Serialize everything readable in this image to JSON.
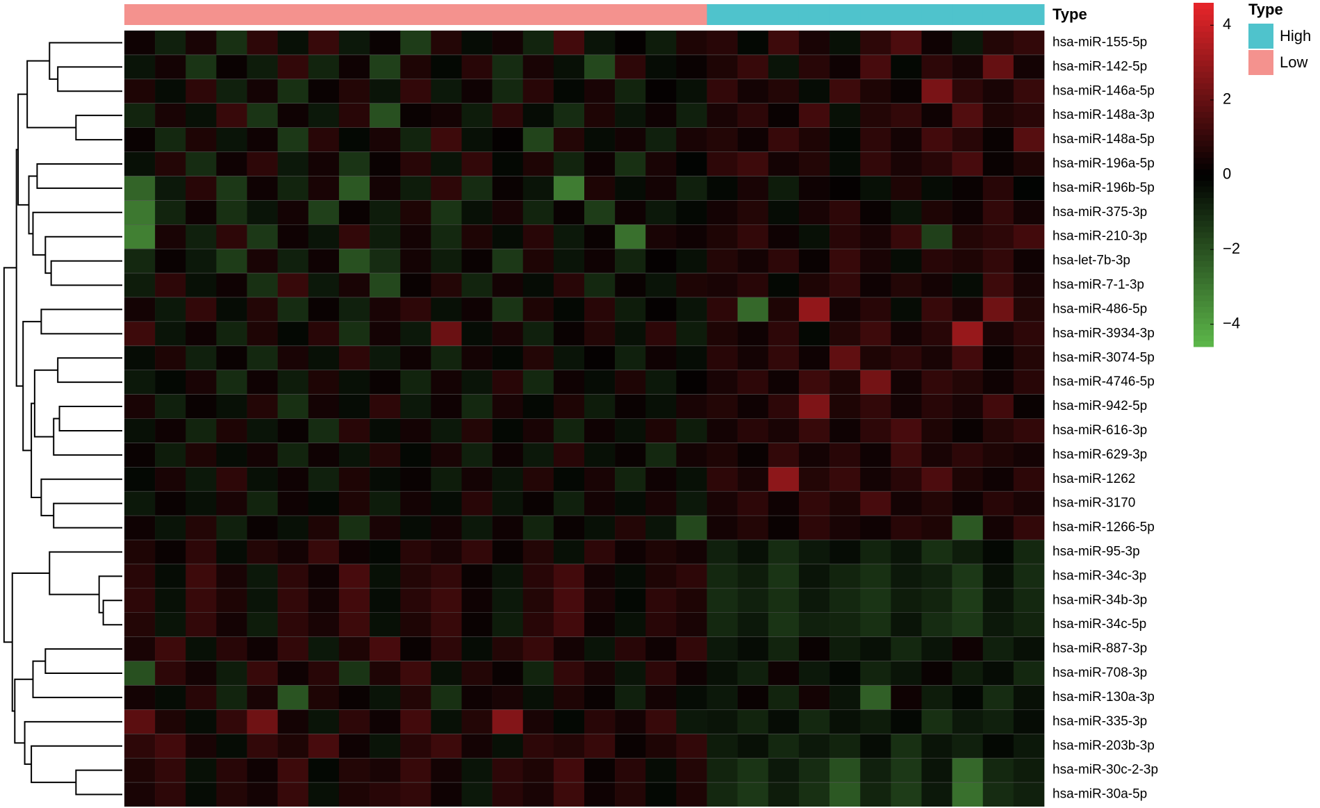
{
  "chart_data": {
    "type": "heatmap",
    "rows": [
      "hsa-miR-155-5p",
      "hsa-miR-142-5p",
      "hsa-miR-146a-5p",
      "hsa-miR-148a-3p",
      "hsa-miR-148a-5p",
      "hsa-miR-196a-5p",
      "hsa-miR-196b-5p",
      "hsa-miR-375-3p",
      "hsa-miR-210-3p",
      "hsa-let-7b-3p",
      "hsa-miR-7-1-3p",
      "hsa-miR-486-5p",
      "hsa-miR-3934-3p",
      "hsa-miR-3074-5p",
      "hsa-miR-4746-5p",
      "hsa-miR-942-5p",
      "hsa-miR-616-3p",
      "hsa-miR-629-3p",
      "hsa-miR-1262",
      "hsa-miR-3170",
      "hsa-miR-1266-5p",
      "hsa-miR-95-3p",
      "hsa-miR-34c-3p",
      "hsa-miR-34b-3p",
      "hsa-miR-34c-5p",
      "hsa-miR-887-3p",
      "hsa-miR-708-3p",
      "hsa-miR-130a-3p",
      "hsa-miR-335-3p",
      "hsa-miR-203b-3p",
      "hsa-miR-30c-2-3p",
      "hsa-miR-30a-5p"
    ],
    "annotation": {
      "title": "Type",
      "levels": [
        {
          "name": "High",
          "color": "#4FC3CC"
        },
        {
          "name": "Low",
          "color": "#F4928E"
        }
      ],
      "column_type": [
        "Low",
        "Low",
        "Low",
        "Low",
        "Low",
        "Low",
        "Low",
        "Low",
        "Low",
        "Low",
        "Low",
        "Low",
        "Low",
        "Low",
        "Low",
        "Low",
        "Low",
        "Low",
        "Low",
        "High",
        "High",
        "High",
        "High",
        "High",
        "High",
        "High",
        "High",
        "High",
        "High",
        "High"
      ]
    },
    "zlim": [
      -4.6,
      4.6
    ],
    "zticks": [
      4,
      2,
      0,
      {
        "value": -2,
        "label": "−2"
      },
      {
        "value": -4,
        "label": "−4"
      }
    ],
    "colors": [
      "#5DB84A",
      "#000000",
      "#E8252A"
    ],
    "values": [
      [
        0.3,
        -0.8,
        0.5,
        -1.2,
        0.9,
        -0.4,
        1.1,
        -0.6,
        0.2,
        -1.5,
        0.7,
        -0.3,
        0.4,
        -0.9,
        1.3,
        -0.5,
        0.1,
        -0.7,
        0.6,
        0.8,
        -0.2,
        1.2,
        0.5,
        -0.4,
        0.9,
        1.5,
        0.3,
        -0.6,
        0.7,
        1.0
      ],
      [
        -0.5,
        0.4,
        -1.3,
        0.2,
        -0.7,
        1.0,
        -0.9,
        0.3,
        -1.6,
        0.6,
        -0.2,
        0.8,
        -1.1,
        0.5,
        -0.4,
        -1.8,
        0.9,
        -0.3,
        0.2,
        0.6,
        1.1,
        -0.5,
        0.8,
        0.3,
        1.4,
        -0.2,
        0.9,
        0.5,
        2.0,
        0.4
      ],
      [
        0.6,
        -0.3,
        0.9,
        -0.8,
        0.4,
        -1.2,
        0.2,
        0.7,
        -0.5,
        1.0,
        -0.6,
        0.3,
        -1.0,
        0.8,
        -0.2,
        0.5,
        -0.9,
        0.1,
        -0.4,
        1.0,
        0.4,
        0.7,
        -0.3,
        1.2,
        0.6,
        0.2,
        2.4,
        0.9,
        0.5,
        1.1
      ],
      [
        -0.9,
        0.5,
        -0.4,
        1.1,
        -1.3,
        0.3,
        -0.6,
        0.8,
        -2.0,
        0.2,
        0.4,
        -0.7,
        0.9,
        -0.3,
        -1.1,
        0.6,
        -0.5,
        0.3,
        -0.8,
        0.5,
        0.9,
        0.2,
        1.3,
        -0.4,
        0.7,
        1.0,
        0.3,
        1.6,
        0.6,
        0.8
      ],
      [
        0.2,
        -1.0,
        0.6,
        -0.5,
        0.3,
        -1.4,
        0.8,
        -0.2,
        0.5,
        -0.9,
        1.2,
        -0.4,
        0.1,
        -1.7,
        0.7,
        -0.3,
        0.4,
        -0.8,
        0.5,
        0.7,
        0.3,
        1.1,
        0.6,
        -0.2,
        0.9,
        0.4,
        1.3,
        0.8,
        0.2,
        1.7
      ],
      [
        -0.4,
        0.7,
        -1.1,
        0.3,
        0.9,
        -0.6,
        0.4,
        -1.3,
        0.2,
        0.8,
        -0.5,
        1.0,
        -0.2,
        0.6,
        -0.9,
        0.3,
        -1.2,
        0.5,
        -0.1,
        0.9,
        1.2,
        0.4,
        0.7,
        -0.3,
        1.0,
        0.5,
        0.8,
        1.4,
        0.2,
        0.6
      ],
      [
        -2.5,
        -0.6,
        0.8,
        -1.4,
        0.3,
        -0.9,
        0.5,
        -2.2,
        0.4,
        -0.7,
        0.9,
        -1.1,
        0.2,
        -0.5,
        -3.1,
        0.6,
        -0.3,
        0.4,
        -0.8,
        -0.2,
        0.5,
        -0.7,
        0.3,
        0.1,
        -0.4,
        0.6,
        -0.3,
        0.2,
        0.8,
        -0.1
      ],
      [
        -3.0,
        -0.9,
        0.3,
        -1.2,
        -0.5,
        0.4,
        -1.6,
        0.2,
        -0.7,
        0.6,
        -1.3,
        -0.4,
        0.5,
        -0.9,
        0.2,
        -1.5,
        0.3,
        -0.6,
        -0.2,
        0.4,
        0.7,
        -0.3,
        0.5,
        0.9,
        0.2,
        -0.5,
        0.6,
        0.3,
        1.0,
        0.4
      ],
      [
        -3.2,
        0.5,
        -0.8,
        0.9,
        -1.4,
        0.3,
        -0.5,
        1.0,
        -0.7,
        0.4,
        -1.0,
        0.6,
        -0.3,
        0.8,
        -0.6,
        0.2,
        -2.8,
        0.5,
        0.3,
        0.6,
        1.0,
        0.3,
        -0.4,
        0.8,
        0.5,
        1.1,
        -1.6,
        0.7,
        0.9,
        1.3
      ],
      [
        -1.0,
        0.2,
        -0.6,
        -1.5,
        0.5,
        -0.8,
        0.3,
        -2.0,
        -1.1,
        0.4,
        -0.7,
        0.2,
        -1.4,
        0.6,
        -0.5,
        0.3,
        -0.9,
        0.1,
        -0.4,
        0.7,
        0.4,
        0.9,
        0.2,
        1.1,
        0.5,
        -0.3,
        0.8,
        0.6,
        1.0,
        0.3
      ],
      [
        -0.7,
        0.9,
        -0.4,
        0.3,
        -1.2,
        1.1,
        -0.6,
        0.5,
        -1.8,
        0.2,
        0.7,
        -0.9,
        0.4,
        -0.3,
        0.8,
        -1.0,
        0.2,
        -0.5,
        0.6,
        0.5,
        0.8,
        -0.2,
        0.6,
        1.0,
        0.3,
        0.7,
        0.4,
        -0.3,
        1.2,
        0.5
      ],
      [
        0.4,
        -0.6,
        1.0,
        -0.3,
        0.7,
        -1.1,
        0.2,
        -0.8,
        0.5,
        0.9,
        -0.4,
        0.3,
        -1.3,
        0.6,
        -0.2,
        0.8,
        -0.7,
        0.1,
        -0.5,
        0.9,
        -2.6,
        0.6,
        2.9,
        0.4,
        0.8,
        -0.3,
        1.1,
        0.5,
        2.2,
        0.7
      ],
      [
        1.2,
        -0.5,
        0.3,
        -0.9,
        0.6,
        -0.2,
        0.8,
        -1.2,
        0.4,
        -0.6,
        2.1,
        -0.3,
        0.5,
        -0.8,
        0.2,
        0.7,
        -0.4,
        0.9,
        -0.7,
        0.6,
        0.3,
        0.9,
        -0.2,
        0.7,
        1.2,
        0.4,
        0.8,
        3.0,
        0.5,
        0.9
      ],
      [
        -0.3,
        0.6,
        -0.8,
        0.2,
        -1.0,
        0.5,
        -0.4,
        0.9,
        -0.6,
        0.3,
        -0.9,
        0.4,
        -0.2,
        0.7,
        -0.5,
        0.1,
        -0.8,
        0.3,
        -0.3,
        0.8,
        0.4,
        1.0,
        0.3,
        1.9,
        0.6,
        0.9,
        0.5,
        1.3,
        0.2,
        0.7
      ],
      [
        -0.6,
        -0.2,
        0.5,
        -1.1,
        0.3,
        -0.7,
        0.6,
        -0.4,
        0.2,
        -0.9,
        0.4,
        -0.5,
        0.8,
        -1.0,
        0.3,
        -0.3,
        0.6,
        -0.6,
        0.1,
        0.5,
        0.9,
        0.3,
        1.2,
        0.6,
        2.3,
        0.4,
        1.0,
        0.7,
        0.3,
        0.8
      ],
      [
        0.5,
        -0.8,
        0.2,
        -0.4,
        0.7,
        -1.2,
        0.4,
        -0.3,
        0.9,
        -0.6,
        0.3,
        -1.0,
        0.5,
        -0.2,
        0.6,
        -0.7,
        0.2,
        -0.4,
        0.5,
        0.7,
        0.3,
        0.9,
        2.5,
        0.6,
        1.0,
        0.4,
        0.8,
        0.5,
        1.3,
        0.2
      ],
      [
        -0.4,
        0.3,
        -0.9,
        0.6,
        -0.5,
        0.2,
        -1.1,
        0.8,
        -0.3,
        0.4,
        -0.6,
        0.7,
        -0.2,
        0.5,
        -0.9,
        0.3,
        -0.4,
        0.6,
        -0.7,
        0.4,
        0.8,
        0.5,
        1.1,
        0.3,
        0.9,
        1.4,
        0.6,
        0.2,
        0.7,
        1.0
      ],
      [
        0.2,
        -0.7,
        0.6,
        -0.3,
        0.4,
        -0.9,
        0.3,
        -0.5,
        0.7,
        -0.2,
        0.5,
        -0.8,
        0.3,
        -0.6,
        0.8,
        -0.4,
        0.2,
        -1.0,
        0.4,
        0.6,
        0.2,
        1.0,
        0.4,
        0.8,
        0.3,
        1.2,
        0.5,
        0.9,
        0.6,
        0.4
      ],
      [
        -0.2,
        0.5,
        -0.6,
        0.9,
        -0.4,
        0.3,
        -0.8,
        0.6,
        -0.3,
        0.2,
        -0.7,
        0.4,
        -0.5,
        0.7,
        -0.2,
        0.5,
        -0.9,
        0.3,
        -0.4,
        0.9,
        0.5,
        2.8,
        0.7,
        1.1,
        0.4,
        0.8,
        1.5,
        0.6,
        0.3,
        0.9
      ],
      [
        -0.6,
        0.2,
        -0.4,
        0.5,
        -0.9,
        0.3,
        -0.2,
        0.6,
        -0.7,
        0.4,
        -0.3,
        0.8,
        -0.5,
        0.2,
        -0.8,
        0.4,
        -0.3,
        0.5,
        -0.6,
        0.5,
        0.9,
        0.3,
        1.0,
        0.6,
        1.4,
        0.4,
        0.7,
        0.3,
        0.8,
        0.5
      ],
      [
        0.3,
        -0.5,
        0.7,
        -0.8,
        0.2,
        -0.4,
        0.6,
        -1.2,
        0.5,
        -0.3,
        0.4,
        -0.6,
        0.3,
        -0.9,
        0.2,
        -0.4,
        0.7,
        -0.5,
        -1.8,
        0.4,
        0.7,
        0.2,
        0.9,
        0.5,
        0.3,
        0.8,
        0.6,
        -2.2,
        0.4,
        1.0
      ],
      [
        0.6,
        0.2,
        0.9,
        -0.3,
        0.7,
        0.4,
        1.1,
        0.3,
        -0.2,
        0.8,
        0.5,
        1.0,
        0.2,
        0.7,
        -0.4,
        0.9,
        0.3,
        0.6,
        0.4,
        -0.8,
        -0.4,
        -1.1,
        -0.6,
        -0.3,
        -0.9,
        -0.5,
        -1.2,
        -0.7,
        -0.2,
        -1.0
      ],
      [
        0.8,
        -0.3,
        1.2,
        0.5,
        -0.6,
        0.9,
        0.3,
        1.4,
        -0.4,
        0.7,
        1.0,
        0.2,
        -0.5,
        0.8,
        1.3,
        0.4,
        -0.3,
        0.6,
        0.9,
        -1.0,
        -0.7,
        -1.3,
        -0.5,
        -0.9,
        -1.2,
        -0.6,
        -0.8,
        -1.4,
        -0.4,
        -1.1
      ],
      [
        0.9,
        -0.4,
        1.1,
        0.6,
        -0.5,
        1.0,
        0.4,
        1.3,
        -0.3,
        0.8,
        1.2,
        0.3,
        -0.6,
        0.7,
        1.4,
        0.5,
        -0.2,
        0.9,
        0.6,
        -1.1,
        -0.8,
        -1.2,
        -0.6,
        -1.0,
        -1.3,
        -0.7,
        -0.9,
        -1.5,
        -0.5,
        -1.0
      ],
      [
        0.7,
        -0.5,
        1.0,
        0.4,
        -0.7,
        0.9,
        0.5,
        1.2,
        -0.4,
        0.6,
        1.1,
        0.2,
        -0.7,
        0.8,
        1.3,
        0.3,
        -0.4,
        0.8,
        0.5,
        -1.0,
        -0.6,
        -1.3,
        -0.8,
        -0.9,
        -1.2,
        -0.5,
        -1.1,
        -1.4,
        -0.6,
        -0.9
      ],
      [
        0.5,
        1.2,
        -0.4,
        0.8,
        0.3,
        1.0,
        -0.6,
        0.6,
        1.4,
        0.2,
        0.9,
        -0.3,
        0.7,
        1.1,
        0.4,
        -0.5,
        0.8,
        0.3,
        1.0,
        -0.6,
        -0.3,
        -0.9,
        0.2,
        -0.7,
        -0.4,
        -1.0,
        -0.5,
        0.3,
        -0.8,
        -0.4
      ],
      [
        -2.0,
        0.9,
        0.4,
        -0.7,
        1.1,
        0.3,
        0.8,
        -1.3,
        0.6,
        1.2,
        -0.4,
        0.7,
        0.2,
        -0.9,
        1.0,
        0.5,
        -0.5,
        0.9,
        0.3,
        -0.4,
        -0.8,
        0.3,
        -0.6,
        -0.2,
        -0.9,
        -0.5,
        0.2,
        -0.7,
        -0.3,
        -1.0
      ],
      [
        0.4,
        -0.3,
        0.8,
        -0.9,
        0.5,
        -2.1,
        0.6,
        0.2,
        -0.5,
        0.7,
        -1.2,
        0.3,
        0.5,
        -0.4,
        0.6,
        0.2,
        -0.8,
        0.4,
        -0.3,
        -0.6,
        0.2,
        -0.9,
        0.4,
        -0.5,
        -2.4,
        0.3,
        -0.7,
        -0.2,
        -1.1,
        -0.4
      ],
      [
        1.8,
        0.6,
        -0.3,
        1.0,
        2.2,
        0.4,
        -0.5,
        0.9,
        0.3,
        1.3,
        -0.4,
        0.7,
        2.6,
        0.5,
        -0.2,
        0.8,
        0.4,
        1.1,
        -0.6,
        -0.5,
        -0.9,
        -0.3,
        -1.0,
        -0.4,
        -0.7,
        -0.2,
        -1.2,
        -0.6,
        -0.8,
        -0.3
      ],
      [
        0.9,
        1.3,
        0.5,
        -0.3,
        1.0,
        0.6,
        1.4,
        0.3,
        -0.5,
        0.8,
        1.2,
        0.4,
        -0.4,
        0.9,
        0.7,
        1.1,
        0.2,
        0.6,
        1.0,
        -0.7,
        -0.4,
        -1.0,
        -0.6,
        -0.9,
        -0.3,
        -1.2,
        -0.5,
        -0.8,
        -0.2,
        -0.6
      ],
      [
        0.6,
        1.0,
        -0.4,
        0.8,
        0.3,
        1.2,
        -0.2,
        0.7,
        0.5,
        1.1,
        0.4,
        -0.5,
        0.9,
        0.6,
        1.3,
        0.2,
        0.8,
        -0.3,
        0.7,
        -0.9,
        -1.3,
        -0.6,
        -1.1,
        -2.0,
        -0.8,
        -1.4,
        -0.5,
        -2.6,
        -1.0,
        -0.7
      ],
      [
        0.5,
        0.9,
        -0.3,
        0.7,
        0.4,
        1.1,
        -0.4,
        0.6,
        0.8,
        1.0,
        0.3,
        -0.6,
        0.8,
        0.5,
        1.2,
        0.3,
        0.7,
        -0.2,
        0.6,
        -1.0,
        -1.4,
        -0.7,
        -1.2,
        -2.2,
        -0.9,
        -1.5,
        -0.6,
        -2.8,
        -1.1,
        -0.8
      ]
    ],
    "row_dendrogram": {
      "merges": [
        [
          -2,
          -3,
          78
        ],
        [
          -1,
          1,
          88
        ],
        [
          -4,
          -5,
          56
        ],
        [
          2,
          3,
          115
        ],
        [
          -6,
          -7,
          103
        ],
        [
          -10,
          -11,
          86
        ],
        [
          -9,
          6,
          93
        ],
        [
          -8,
          7,
          108
        ],
        [
          5,
          8,
          113
        ],
        [
          4,
          9,
          126
        ],
        [
          -12,
          -13,
          98
        ],
        [
          -14,
          -15,
          78
        ],
        [
          -16,
          -17,
          76
        ],
        [
          -18,
          13,
          83
        ],
        [
          12,
          14,
          106
        ],
        [
          -20,
          -21,
          83
        ],
        [
          -19,
          16,
          98
        ],
        [
          15,
          17,
          110
        ],
        [
          11,
          18,
          120
        ],
        [
          10,
          19,
          128
        ],
        [
          -24,
          -25,
          23
        ],
        [
          -23,
          21,
          28
        ],
        [
          -22,
          22,
          88
        ],
        [
          -26,
          -27,
          93
        ],
        [
          -28,
          24,
          108
        ],
        [
          -31,
          -32,
          56
        ],
        [
          -30,
          26,
          110
        ],
        [
          -29,
          27,
          118
        ],
        [
          25,
          28,
          130
        ],
        [
          23,
          29,
          133
        ],
        [
          20,
          30,
          143
        ]
      ]
    }
  }
}
